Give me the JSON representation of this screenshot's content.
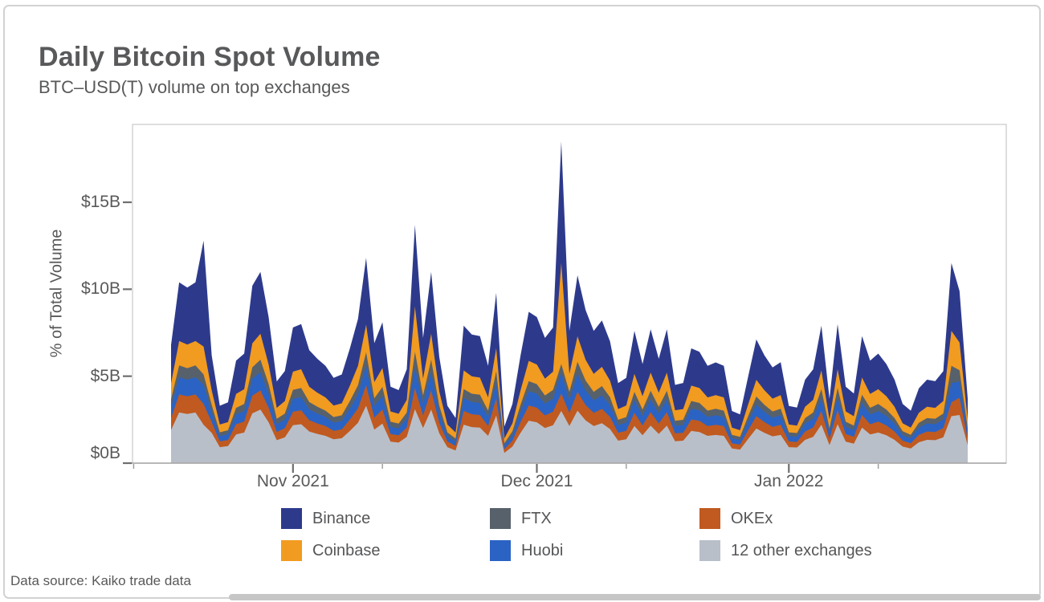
{
  "header": {
    "title": "Daily Bitcoin Spot Volume",
    "subtitle": "BTC–USD(T) volume on top exchanges"
  },
  "footer": {
    "source": "Data source: Kaiko trade data"
  },
  "chart_data": {
    "type": "area",
    "stacked": true,
    "title": "Daily Bitcoin Spot Volume",
    "subtitle": "BTC–USD(T) volume on top exchanges",
    "xlabel": "",
    "ylabel": "% of Total Volume",
    "unit": "$B",
    "grid": false,
    "legend_position": "bottom",
    "ylim": [
      0,
      19.5
    ],
    "y_ticks": [
      {
        "value": 0,
        "label": "$0B"
      },
      {
        "value": 5,
        "label": "$5B"
      },
      {
        "value": 10,
        "label": "$10B"
      },
      {
        "value": 15,
        "label": "$15B"
      }
    ],
    "x_ticks_major": [
      {
        "day": 15,
        "label": "Nov 2021"
      },
      {
        "day": 45,
        "label": "Dec 2021"
      },
      {
        "day": 76,
        "label": "Jan 2022"
      }
    ],
    "x_ticks_minor_days": [
      -4.6,
      26,
      56,
      87
    ],
    "n_points": 99,
    "x_note": "daily points, mid-Oct 2021 through late Jan 2022",
    "series": [
      {
        "name": "12 other exchanges",
        "color": "#b9bfc9",
        "values": [
          1.9,
          2.91,
          2.83,
          2.91,
          2.2,
          1.74,
          0.92,
          0.98,
          1.65,
          1.76,
          2.86,
          3.08,
          2.35,
          1.32,
          1.48,
          2.18,
          2.24,
          1.82,
          1.68,
          1.57,
          1.37,
          1.43,
          1.85,
          2.32,
          3.3,
          1.93,
          2.27,
          1.23,
          1.18,
          1.51,
          3.1,
          2.02,
          3.08,
          1.71,
          0.92,
          0.73,
          2.21,
          2.07,
          2.04,
          1.57,
          2.74,
          0.59,
          0.95,
          1.74,
          2.44,
          2.35,
          2.02,
          2.18,
          3.0,
          2.13,
          3.02,
          2.46,
          2.13,
          2.3,
          1.96,
          1.29,
          1.37,
          2.13,
          1.6,
          2.16,
          1.68,
          2.16,
          1.26,
          1.29,
          1.85,
          1.79,
          1.57,
          1.62,
          1.57,
          0.84,
          0.78,
          1.4,
          1.99,
          1.74,
          1.54,
          1.62,
          0.92,
          0.9,
          1.34,
          1.51,
          2.21,
          1.04,
          2.24,
          1.23,
          1.12,
          2.04,
          1.65,
          1.76,
          1.6,
          1.34,
          0.95,
          0.84,
          1.2,
          1.34,
          1.32,
          1.48,
          2.7,
          2.77,
          1.04
        ]
      },
      {
        "name": "OKEx",
        "color": "#c05a20",
        "values": [
          0.68,
          1.04,
          1.01,
          1.04,
          1.2,
          0.62,
          0.33,
          0.35,
          0.59,
          0.63,
          1.02,
          1.1,
          0.84,
          0.47,
          0.53,
          0.78,
          0.8,
          0.65,
          0.6,
          0.56,
          0.49,
          0.51,
          0.66,
          0.83,
          1.18,
          0.69,
          0.81,
          0.44,
          0.42,
          0.54,
          1.2,
          0.72,
          1.1,
          0.61,
          0.33,
          0.26,
          0.79,
          0.74,
          0.73,
          0.56,
          0.98,
          0.21,
          0.34,
          0.62,
          0.87,
          0.84,
          0.72,
          0.78,
          1.0,
          0.76,
          1.08,
          0.88,
          0.76,
          0.82,
          0.7,
          0.46,
          0.49,
          0.76,
          0.57,
          0.77,
          0.6,
          0.77,
          0.45,
          0.46,
          0.66,
          0.64,
          0.56,
          0.58,
          0.56,
          0.3,
          0.28,
          0.5,
          0.71,
          0.62,
          0.55,
          0.58,
          0.33,
          0.32,
          0.48,
          0.54,
          0.79,
          0.37,
          0.8,
          0.44,
          0.4,
          0.73,
          0.59,
          0.63,
          0.57,
          0.48,
          0.34,
          0.3,
          0.43,
          0.48,
          0.47,
          0.53,
          0.8,
          0.99,
          0.37
        ]
      },
      {
        "name": "Huobi",
        "color": "#2b63c4",
        "values": [
          0.65,
          0.99,
          0.96,
          0.99,
          1.1,
          0.59,
          0.31,
          0.33,
          0.56,
          0.6,
          0.97,
          1.05,
          0.8,
          0.45,
          0.5,
          0.74,
          0.76,
          0.62,
          0.57,
          0.53,
          0.47,
          0.48,
          0.63,
          0.79,
          1.12,
          0.66,
          0.77,
          0.42,
          0.4,
          0.51,
          1.2,
          0.68,
          1.05,
          0.58,
          0.31,
          0.25,
          0.75,
          0.7,
          0.69,
          0.53,
          0.93,
          0.2,
          0.32,
          0.59,
          0.83,
          0.8,
          0.68,
          0.74,
          1.2,
          0.72,
          1.03,
          0.84,
          0.72,
          0.78,
          0.67,
          0.44,
          0.47,
          0.72,
          0.54,
          0.73,
          0.57,
          0.73,
          0.43,
          0.44,
          0.63,
          0.61,
          0.53,
          0.55,
          0.53,
          0.29,
          0.27,
          0.48,
          0.67,
          0.59,
          0.52,
          0.55,
          0.31,
          0.3,
          0.46,
          0.51,
          0.75,
          0.35,
          0.76,
          0.42,
          0.38,
          0.69,
          0.56,
          0.6,
          0.54,
          0.46,
          0.32,
          0.29,
          0.41,
          0.46,
          0.45,
          0.5,
          1.1,
          0.94,
          0.35
        ]
      },
      {
        "name": "FTX",
        "color": "#57616c",
        "values": [
          0.44,
          0.68,
          0.66,
          0.68,
          0.6,
          0.4,
          0.21,
          0.23,
          0.38,
          0.41,
          0.66,
          0.72,
          0.55,
          0.31,
          0.34,
          0.51,
          0.52,
          0.42,
          0.39,
          0.36,
          0.32,
          0.33,
          0.43,
          0.54,
          0.77,
          0.45,
          0.53,
          0.29,
          0.27,
          0.35,
          0.9,
          0.47,
          0.72,
          0.4,
          0.21,
          0.17,
          0.51,
          0.48,
          0.47,
          0.36,
          0.64,
          0.14,
          0.22,
          0.4,
          0.57,
          0.55,
          0.47,
          0.51,
          0.5,
          0.49,
          0.7,
          0.57,
          0.49,
          0.53,
          0.46,
          0.3,
          0.32,
          0.49,
          0.37,
          0.5,
          0.39,
          0.5,
          0.29,
          0.3,
          0.43,
          0.42,
          0.36,
          0.38,
          0.36,
          0.2,
          0.18,
          0.33,
          0.46,
          0.4,
          0.36,
          0.38,
          0.21,
          0.21,
          0.31,
          0.35,
          0.51,
          0.24,
          0.52,
          0.29,
          0.26,
          0.47,
          0.38,
          0.41,
          0.37,
          0.31,
          0.22,
          0.2,
          0.28,
          0.31,
          0.31,
          0.34,
          1.0,
          0.64,
          0.24
        ]
      },
      {
        "name": "Coinbase",
        "color": "#f19b20",
        "values": [
          0.92,
          1.4,
          1.36,
          1.4,
          1.6,
          0.84,
          0.45,
          0.47,
          0.8,
          0.85,
          1.38,
          1.49,
          1.13,
          0.63,
          0.72,
          1.05,
          1.08,
          0.88,
          0.81,
          0.76,
          0.66,
          0.69,
          0.89,
          1.12,
          1.59,
          0.93,
          1.09,
          0.59,
          0.57,
          0.73,
          2.6,
          0.97,
          1.49,
          0.82,
          0.45,
          0.35,
          1.07,
          1.0,
          0.99,
          0.76,
          1.32,
          0.28,
          0.46,
          0.84,
          1.17,
          1.13,
          0.97,
          1.05,
          5.8,
          1.03,
          1.46,
          1.19,
          1.03,
          1.11,
          0.95,
          0.62,
          0.66,
          1.03,
          0.77,
          1.04,
          0.81,
          1.04,
          0.61,
          0.62,
          0.89,
          0.86,
          0.76,
          0.78,
          0.76,
          0.41,
          0.38,
          0.68,
          0.96,
          0.84,
          0.74,
          0.78,
          0.45,
          0.43,
          0.65,
          0.73,
          1.07,
          0.5,
          1.08,
          0.59,
          0.54,
          0.99,
          0.8,
          0.85,
          0.77,
          0.65,
          0.46,
          0.41,
          0.58,
          0.65,
          0.63,
          0.72,
          2.0,
          1.6,
          0.5
        ]
      },
      {
        "name": "Binance",
        "color": "#2d3a8c",
        "values": [
          2.21,
          3.38,
          3.28,
          3.38,
          6.1,
          2.01,
          1.08,
          1.14,
          1.92,
          2.05,
          3.31,
          3.56,
          2.73,
          1.52,
          1.73,
          2.54,
          2.6,
          2.11,
          1.95,
          1.82,
          1.59,
          1.66,
          2.14,
          2.7,
          3.84,
          2.24,
          2.63,
          1.43,
          1.36,
          1.76,
          4.7,
          2.34,
          3.56,
          1.98,
          1.08,
          0.84,
          2.57,
          2.41,
          2.38,
          1.82,
          3.18,
          0.68,
          1.11,
          2.01,
          2.82,
          2.73,
          2.34,
          2.54,
          7.0,
          2.47,
          3.51,
          2.86,
          2.47,
          2.66,
          2.26,
          1.49,
          1.59,
          2.47,
          1.85,
          2.5,
          1.95,
          2.5,
          1.46,
          1.5,
          2.14,
          2.08,
          1.82,
          1.88,
          1.82,
          0.96,
          0.91,
          1.61,
          2.32,
          2.01,
          1.79,
          1.89,
          1.07,
          1.04,
          1.56,
          1.76,
          2.57,
          1.2,
          2.6,
          1.43,
          1.3,
          2.38,
          1.92,
          2.05,
          1.85,
          1.56,
          1.11,
          0.98,
          1.4,
          1.56,
          1.53,
          1.72,
          3.9,
          2.96,
          1.2
        ]
      }
    ],
    "legend_rows": [
      [
        5,
        3,
        1
      ],
      [
        4,
        2,
        0
      ]
    ]
  }
}
